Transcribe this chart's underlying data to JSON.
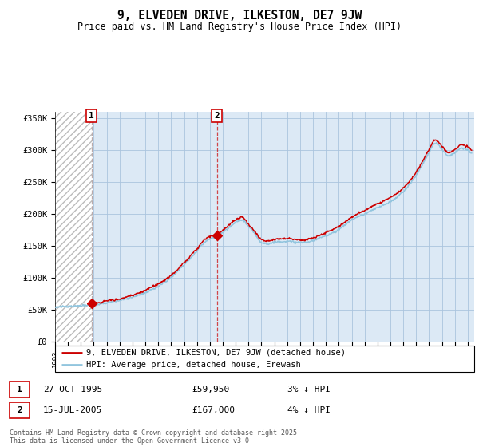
{
  "title": "9, ELVEDEN DRIVE, ILKESTON, DE7 9JW",
  "subtitle": "Price paid vs. HM Land Registry's House Price Index (HPI)",
  "sale1_date": "27-OCT-1995",
  "sale1_price": 59950,
  "sale1_label": "1",
  "sale1_year": 1995.82,
  "sale2_date": "15-JUL-2005",
  "sale2_price": 167000,
  "sale2_label": "2",
  "sale2_year": 2005.54,
  "legend_property": "9, ELVEDEN DRIVE, ILKESTON, DE7 9JW (detached house)",
  "legend_hpi": "HPI: Average price, detached house, Erewash",
  "footer": "Contains HM Land Registry data © Crown copyright and database right 2025.\nThis data is licensed under the Open Government Licence v3.0.",
  "ylim": [
    0,
    360000
  ],
  "xlim_start": 1993.0,
  "xlim_end": 2025.5,
  "hatch_end_year": 1995.9,
  "property_color": "#cc0000",
  "hpi_color": "#92c5de",
  "hatch_color": "#bbbbbb",
  "background_color": "#dce9f5",
  "grid_color": "#aac4de"
}
